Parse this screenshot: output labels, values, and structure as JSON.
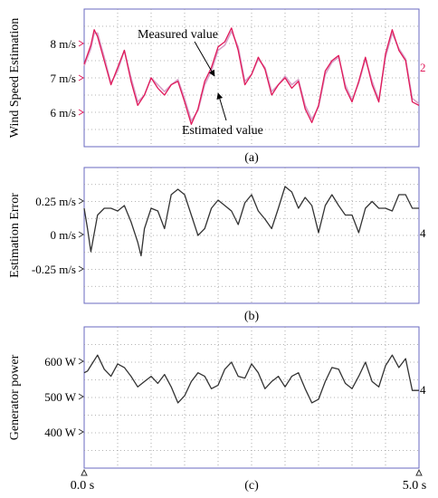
{
  "chart_data": [
    {
      "id": "a",
      "type": "line",
      "panel_label": "(a)",
      "ylabel": "Wind Speed Estimation",
      "ytick_labels": [
        "8 m/s",
        "7 m/s",
        "6 m/s"
      ],
      "ytick_values": [
        8,
        7,
        6
      ],
      "ylim": [
        5.0,
        9.0
      ],
      "xlim": [
        0.0,
        5.0
      ],
      "grid": true,
      "channel_marker": "2",
      "annotations": [
        {
          "text": "Measured value",
          "target": {
            "x": 1.93,
            "y": 7.02
          }
        },
        {
          "text": "Estimated value",
          "target": {
            "x": 1.98,
            "y": 6.55
          }
        }
      ],
      "series": [
        {
          "name": "Measured value",
          "color": "#e0195a",
          "x": [
            0.0,
            0.1,
            0.15,
            0.2,
            0.3,
            0.4,
            0.5,
            0.6,
            0.7,
            0.8,
            0.9,
            1.0,
            1.1,
            1.2,
            1.3,
            1.4,
            1.5,
            1.6,
            1.7,
            1.8,
            1.9,
            2.0,
            2.1,
            2.2,
            2.3,
            2.4,
            2.5,
            2.6,
            2.7,
            2.8,
            2.9,
            3.0,
            3.1,
            3.2,
            3.3,
            3.4,
            3.5,
            3.6,
            3.7,
            3.8,
            3.9,
            4.0,
            4.1,
            4.2,
            4.3,
            4.4,
            4.5,
            4.6,
            4.7,
            4.8,
            4.9,
            5.0
          ],
          "values": [
            7.4,
            7.95,
            8.4,
            8.2,
            7.5,
            6.8,
            7.3,
            7.8,
            6.9,
            6.2,
            6.5,
            7.0,
            6.7,
            6.5,
            6.8,
            6.9,
            6.3,
            5.65,
            6.1,
            6.9,
            7.3,
            7.9,
            8.05,
            8.45,
            7.8,
            6.8,
            7.1,
            7.6,
            7.25,
            6.5,
            6.8,
            7.0,
            6.7,
            6.9,
            6.1,
            5.7,
            6.2,
            7.2,
            7.5,
            7.65,
            6.7,
            6.3,
            6.9,
            7.6,
            6.8,
            6.3,
            7.7,
            8.4,
            7.8,
            7.5,
            6.3,
            6.2
          ]
        },
        {
          "name": "Estimated value",
          "color": "#d8a0c8",
          "x": [
            0.0,
            0.1,
            0.15,
            0.2,
            0.3,
            0.4,
            0.5,
            0.6,
            0.7,
            0.8,
            0.9,
            1.0,
            1.1,
            1.2,
            1.3,
            1.4,
            1.5,
            1.6,
            1.7,
            1.8,
            1.9,
            2.0,
            2.1,
            2.2,
            2.3,
            2.4,
            2.5,
            2.6,
            2.7,
            2.8,
            2.9,
            3.0,
            3.1,
            3.2,
            3.3,
            3.4,
            3.5,
            3.6,
            3.7,
            3.8,
            3.9,
            4.0,
            4.1,
            4.2,
            4.3,
            4.4,
            4.5,
            4.6,
            4.7,
            4.8,
            4.9,
            5.0
          ],
          "values": [
            7.35,
            7.85,
            8.3,
            8.3,
            7.6,
            6.85,
            7.2,
            7.8,
            7.0,
            6.3,
            6.5,
            7.0,
            6.8,
            6.6,
            6.8,
            6.95,
            6.4,
            5.75,
            6.05,
            6.8,
            7.2,
            7.8,
            7.95,
            8.35,
            7.9,
            6.9,
            7.1,
            7.55,
            7.3,
            6.6,
            6.8,
            7.05,
            6.8,
            6.95,
            6.2,
            5.8,
            6.15,
            7.1,
            7.45,
            7.6,
            6.8,
            6.35,
            6.85,
            7.55,
            6.9,
            6.35,
            7.6,
            8.3,
            7.85,
            7.55,
            6.4,
            6.25
          ]
        }
      ]
    },
    {
      "id": "b",
      "type": "line",
      "panel_label": "(b)",
      "ylabel": "Estimation Error",
      "ytick_labels": [
        "0.25 m/s",
        "0 m/s",
        "-0.25 m/s"
      ],
      "ytick_values": [
        0.25,
        0.0,
        -0.25
      ],
      "ylim": [
        -0.5,
        0.5
      ],
      "xlim": [
        0.0,
        5.0
      ],
      "grid": true,
      "channel_marker": "4",
      "series": [
        {
          "name": "",
          "color": "#333333",
          "x": [
            0.0,
            0.05,
            0.1,
            0.2,
            0.3,
            0.4,
            0.5,
            0.6,
            0.7,
            0.8,
            0.85,
            0.9,
            1.0,
            1.1,
            1.2,
            1.3,
            1.4,
            1.5,
            1.6,
            1.7,
            1.8,
            1.9,
            2.0,
            2.1,
            2.2,
            2.3,
            2.4,
            2.5,
            2.6,
            2.7,
            2.8,
            2.9,
            3.0,
            3.1,
            3.2,
            3.3,
            3.4,
            3.5,
            3.6,
            3.7,
            3.8,
            3.9,
            4.0,
            4.1,
            4.2,
            4.3,
            4.4,
            4.5,
            4.6,
            4.7,
            4.8,
            4.9,
            5.0
          ],
          "values": [
            0.2,
            0.05,
            -0.12,
            0.15,
            0.2,
            0.2,
            0.18,
            0.22,
            0.1,
            -0.05,
            -0.15,
            0.05,
            0.2,
            0.18,
            0.05,
            0.3,
            0.34,
            0.3,
            0.15,
            0.0,
            0.05,
            0.2,
            0.26,
            0.22,
            0.18,
            0.08,
            0.24,
            0.3,
            0.18,
            0.12,
            0.05,
            0.2,
            0.36,
            0.32,
            0.2,
            0.28,
            0.22,
            0.02,
            0.22,
            0.3,
            0.22,
            0.15,
            0.15,
            0.02,
            0.2,
            0.25,
            0.2,
            0.2,
            0.18,
            0.3,
            0.3,
            0.2,
            0.2
          ]
        }
      ]
    },
    {
      "id": "c",
      "type": "line",
      "panel_label": "(c)",
      "ylabel": "Generator power",
      "ytick_labels": [
        "600 W",
        "500 W",
        "400 W"
      ],
      "ytick_values": [
        600,
        500,
        400
      ],
      "ylim": [
        300,
        700
      ],
      "xlim": [
        0.0,
        5.0
      ],
      "xtick_labels": [
        "0.0 s",
        "5.0 s"
      ],
      "xtick_values": [
        0.0,
        5.0
      ],
      "grid": true,
      "channel_marker": "4",
      "series": [
        {
          "name": "",
          "color": "#333333",
          "x": [
            0.0,
            0.05,
            0.1,
            0.2,
            0.3,
            0.4,
            0.5,
            0.6,
            0.7,
            0.8,
            0.9,
            1.0,
            1.1,
            1.2,
            1.3,
            1.4,
            1.5,
            1.6,
            1.7,
            1.8,
            1.9,
            2.0,
            2.1,
            2.2,
            2.3,
            2.4,
            2.5,
            2.6,
            2.7,
            2.8,
            2.9,
            3.0,
            3.1,
            3.2,
            3.3,
            3.4,
            3.5,
            3.6,
            3.7,
            3.8,
            3.9,
            4.0,
            4.1,
            4.2,
            4.3,
            4.4,
            4.5,
            4.6,
            4.7,
            4.8,
            4.9,
            5.0
          ],
          "values": [
            570,
            575,
            590,
            620,
            580,
            560,
            595,
            585,
            560,
            530,
            545,
            560,
            540,
            565,
            530,
            485,
            505,
            545,
            570,
            560,
            525,
            535,
            580,
            600,
            560,
            555,
            595,
            570,
            525,
            545,
            560,
            530,
            560,
            570,
            525,
            485,
            495,
            545,
            585,
            580,
            540,
            525,
            560,
            600,
            545,
            530,
            590,
            620,
            585,
            610,
            520,
            520
          ]
        }
      ]
    }
  ]
}
